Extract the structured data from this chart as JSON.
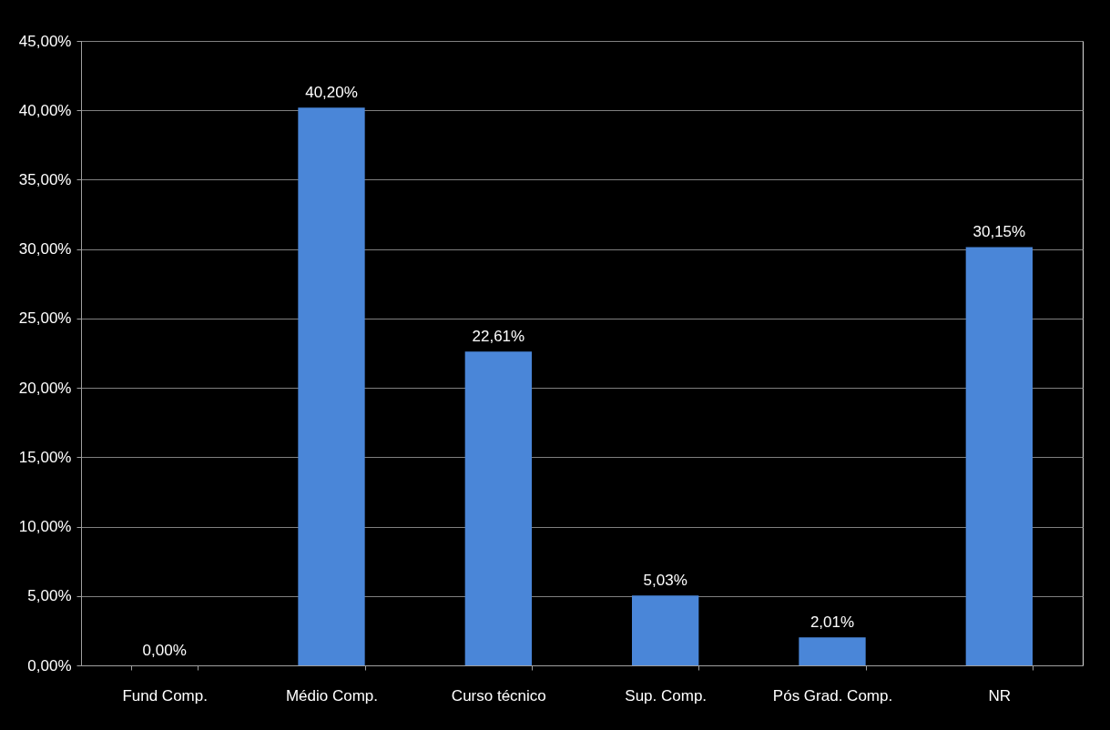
{
  "chart_data": {
    "type": "bar",
    "categories": [
      "Fund Comp.",
      "Médio Comp.",
      "Curso técnico",
      "Sup. Comp.",
      "Pós Grad. Comp.",
      "NR"
    ],
    "values": [
      0,
      40.2,
      22.61,
      5.03,
      2.01,
      30.15
    ],
    "value_labels": [
      "0,00%",
      "40,20%",
      "22,61%",
      "5,03%",
      "2,01%",
      "30,15%"
    ],
    "color": "#4a86d8",
    "ylim": [
      0,
      45
    ],
    "yticks": [
      {
        "value": 0,
        "label": "0,00%"
      },
      {
        "value": 5,
        "label": "5,00%"
      },
      {
        "value": 10,
        "label": "10,00%"
      },
      {
        "value": 15,
        "label": "15,00%"
      },
      {
        "value": 20,
        "label": "20,00%"
      },
      {
        "value": 25,
        "label": "25,00%"
      },
      {
        "value": 30,
        "label": "30,00%"
      },
      {
        "value": 35,
        "label": "35,00%"
      },
      {
        "value": 40,
        "label": "40,00%"
      },
      {
        "value": 45,
        "label": "45,00%"
      }
    ],
    "grid": "y"
  }
}
